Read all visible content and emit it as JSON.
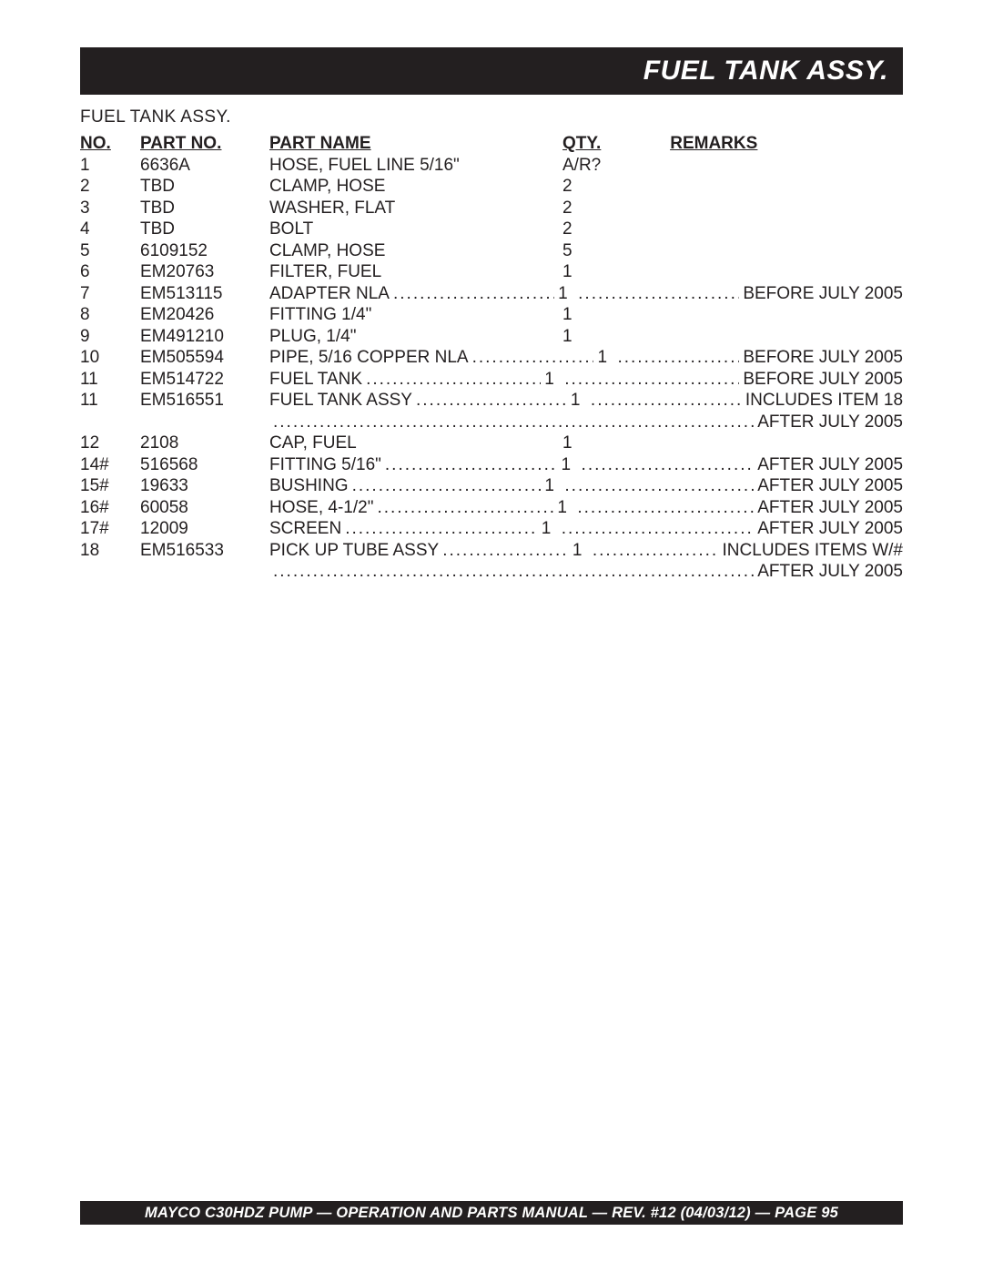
{
  "colors": {
    "ink": "#231f20",
    "barBg": "#231f20",
    "barText": "#ffffff",
    "pageBg": "#ffffff"
  },
  "header": {
    "title": "FUEL TANK ASSY."
  },
  "subtitle": "FUEL TANK ASSY.",
  "columns": {
    "no": "NO.",
    "part": "PART NO.",
    "name": "PART NAME",
    "qty": "QTY.",
    "remarks": "REMARKS"
  },
  "rows": [
    {
      "no": "1",
      "part": "6636A",
      "name": "HOSE, FUEL LINE 5/16\"",
      "qty": "A/R?",
      "remarks": "",
      "leader": false
    },
    {
      "no": "2",
      "part": "TBD",
      "name": "CLAMP, HOSE",
      "qty": "2",
      "remarks": "",
      "leader": false
    },
    {
      "no": "3",
      "part": "TBD",
      "name": "WASHER, FLAT",
      "qty": "2",
      "remarks": "",
      "leader": false
    },
    {
      "no": "4",
      "part": "TBD",
      "name": "BOLT",
      "qty": "2",
      "remarks": "",
      "leader": false
    },
    {
      "no": "5",
      "part": "6109152",
      "name": "CLAMP, HOSE",
      "qty": "5",
      "remarks": "",
      "leader": false
    },
    {
      "no": "6",
      "part": "EM20763",
      "name": "FILTER, FUEL",
      "qty": "1",
      "remarks": "",
      "leader": false
    },
    {
      "no": "7",
      "part": "EM513115",
      "name": "ADAPTER NLA",
      "qty": "1",
      "remarks": "BEFORE JULY 2005",
      "leader": true
    },
    {
      "no": "8",
      "part": "EM20426",
      "name": "FITTING 1/4\"",
      "qty": "1",
      "remarks": "",
      "leader": false
    },
    {
      "no": "9",
      "part": "EM491210",
      "name": "PLUG, 1/4\"",
      "qty": "1",
      "remarks": "",
      "leader": false
    },
    {
      "no": "10",
      "part": "EM505594",
      "name": "PIPE, 5/16 COPPER NLA",
      "qty": "1",
      "remarks": "BEFORE JULY 2005",
      "leader": true
    },
    {
      "no": "11",
      "part": "EM514722",
      "name": "FUEL TANK",
      "qty": "1",
      "remarks": "BEFORE JULY 2005",
      "leader": true
    },
    {
      "no": "11",
      "part": "EM516551",
      "name": "FUEL TANK ASSY",
      "qty": "1",
      "remarks": "INCLUDES ITEM 18",
      "leader": true
    },
    {
      "no": "",
      "part": "",
      "name": "",
      "qty": "",
      "remarks": "AFTER JULY 2005",
      "leader": true,
      "cont": true
    },
    {
      "no": "12",
      "part": "2108",
      "name": "CAP, FUEL",
      "qty": "1",
      "remarks": "",
      "leader": false
    },
    {
      "no": "14#",
      "part": "516568",
      "name": "FITTING 5/16\"",
      "qty": "1",
      "remarks": "AFTER JULY 2005",
      "leader": true
    },
    {
      "no": "15#",
      "part": "19633",
      "name": "BUSHING",
      "qty": "1",
      "remarks": "AFTER JULY 2005",
      "leader": true
    },
    {
      "no": "16#",
      "part": "60058",
      "name": "HOSE, 4-1/2\"",
      "qty": "1",
      "remarks": "AFTER JULY 2005",
      "leader": true
    },
    {
      "no": "17#",
      "part": "12009",
      "name": "SCREEN",
      "qty": "1",
      "remarks": "AFTER JULY 2005",
      "leader": true
    },
    {
      "no": "18",
      "part": "EM516533",
      "name": "PICK UP TUBE ASSY",
      "qty": "1",
      "remarks": "INCLUDES ITEMS W/#",
      "leader": true
    },
    {
      "no": "",
      "part": "",
      "name": "",
      "qty": "",
      "remarks": "AFTER JULY 2005",
      "leader": true,
      "cont": true
    }
  ],
  "qtyHeaderOffset": 320,
  "footer": "MAYCO C30HDZ PUMP — OPERATION AND PARTS MANUAL — REV. #12  (04/03/12) — PAGE 95"
}
